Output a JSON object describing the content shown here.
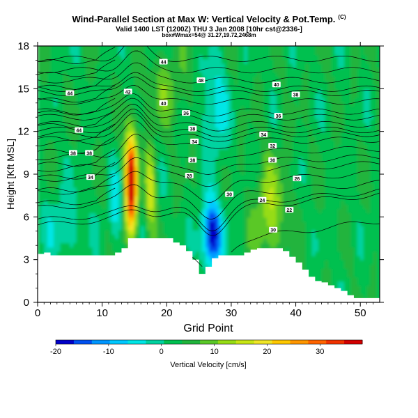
{
  "header": {
    "title": "Wind-Parallel Section at Max W: Vertical Velocity & Pot.Temp.",
    "title_mark": "(C)",
    "subtitle": "Valid 1400 LST (1200Z) THU 3 Jan 2008 [10hr cst@2336-]",
    "subtitle2": "box#Wmax=54@ 31.27,19.72,2468m"
  },
  "chart_data": {
    "type": "heatmap",
    "xlabel": "Grid Point",
    "ylabel": "Height [Kft MSL]",
    "xlim": [
      0,
      53
    ],
    "ylim": [
      0,
      18
    ],
    "x_ticks": [
      "0",
      "10",
      "20",
      "30",
      "40",
      "50"
    ],
    "y_ticks": [
      "0",
      "3",
      "6",
      "9",
      "12",
      "15",
      "18"
    ],
    "colorbar": {
      "label": "Vertical Velocity [cm/s]",
      "range": [
        -20,
        38
      ],
      "tick_labels": [
        "-20",
        "-10",
        "0",
        "10",
        "20",
        "30"
      ],
      "tick_values": [
        -20,
        -10,
        0,
        10,
        20,
        30
      ],
      "colors": [
        "#0000c8",
        "#0050f0",
        "#0096ff",
        "#00c8ff",
        "#00e6e6",
        "#00d2a0",
        "#00c050",
        "#20b43c",
        "#5ac828",
        "#96dc14",
        "#c8e614",
        "#f0e628",
        "#ffc800",
        "#ff9600",
        "#ff6400",
        "#f03200",
        "#d20000"
      ]
    },
    "terrain_height_kft": [
      3.4,
      3.5,
      3.3,
      3.3,
      3.3,
      3.3,
      3.3,
      3.3,
      3.3,
      3.3,
      3.3,
      3.3,
      3.5,
      3.8,
      4.5,
      4.5,
      4.5,
      4.5,
      4.5,
      4.5,
      4.5,
      4.2,
      4.0,
      3.6,
      3.0,
      2.0,
      2.5,
      3.1,
      3.3,
      3.3,
      3.3,
      3.3,
      3.5,
      3.7,
      3.8,
      3.8,
      3.8,
      3.8,
      3.6,
      3.2,
      2.8,
      2.3,
      1.8,
      1.5,
      1.4,
      1.2,
      1.0,
      0.8,
      0.5,
      0.3,
      0.3,
      0.3,
      0.3,
      0.3
    ],
    "w_features": [
      {
        "name": "updraft",
        "x": 14.5,
        "z": 8.5,
        "amp": 38,
        "sx": 0.9,
        "sz": 3.5
      },
      {
        "name": "updraft2",
        "x": 17.5,
        "z": 8.0,
        "amp": 14,
        "sx": 0.8,
        "sz": 2.8
      },
      {
        "name": "downdraft",
        "x": 12.0,
        "z": 6.5,
        "amp": -8,
        "sx": 1.0,
        "sz": 2.5
      },
      {
        "name": "downdraft_main",
        "x": 27.0,
        "z": 4.8,
        "amp": -24,
        "sx": 1.6,
        "sz": 2.2
      },
      {
        "name": "downdraft_upper",
        "x": 27.5,
        "z": 13.5,
        "amp": -9,
        "sx": 1.8,
        "sz": 3.5
      },
      {
        "name": "downdraft_left",
        "x": 4.0,
        "z": 5.5,
        "amp": -6,
        "sx": 3.0,
        "sz": 2.5
      },
      {
        "name": "lee_updraft",
        "x": 36.0,
        "z": 6.5,
        "amp": 10,
        "sx": 2.5,
        "sz": 3.5
      },
      {
        "name": "upper_updraft",
        "x": 20.0,
        "z": 15.0,
        "amp": 6,
        "sx": 3.0,
        "sz": 2.5
      }
    ],
    "theta_contours": [
      {
        "label": "30",
        "label_x": 36.5,
        "label_z": 5.1,
        "base": 4.2
      },
      {
        "label": "30",
        "label_x": 29.7,
        "label_z": 7.6,
        "base": 6.5
      },
      {
        "label": "24",
        "label_x": 34.8,
        "label_z": 7.2,
        "base": 6.8
      },
      {
        "label": "22",
        "label_x": 39.0,
        "label_z": 6.5,
        "base": 7.5
      },
      {
        "label": "26",
        "label_x": 40.2,
        "label_z": 8.7,
        "base": 8.4
      },
      {
        "label": "30",
        "label_x": 36.4,
        "label_z": 10.0,
        "base": 9.2
      },
      {
        "label": "28",
        "label_x": 23.5,
        "label_z": 8.9,
        "base": 9.8
      },
      {
        "label": "38",
        "label_x": 24.0,
        "label_z": 10.0,
        "base": 10.5
      },
      {
        "label": "32",
        "label_x": 36.4,
        "label_z": 11.0,
        "base": 11.3
      },
      {
        "label": "34",
        "label_x": 24.3,
        "label_z": 11.3,
        "base": 11.8
      },
      {
        "label": "34",
        "label_x": 35.0,
        "label_z": 11.8,
        "base": 12.1
      },
      {
        "label": "38",
        "label_x": 24.0,
        "label_z": 12.2,
        "base": 12.5
      },
      {
        "label": "36",
        "label_x": 23.0,
        "label_z": 13.3,
        "base": 13.0
      },
      {
        "label": "36",
        "label_x": 37.3,
        "label_z": 13.1,
        "base": 13.4
      },
      {
        "label": "40",
        "label_x": 19.5,
        "label_z": 14.0,
        "base": 14.1
      },
      {
        "label": "38",
        "label_x": 40.0,
        "label_z": 14.6,
        "base": 14.7
      },
      {
        "label": "42",
        "label_x": 14.0,
        "label_z": 14.8,
        "base": 15.0
      },
      {
        "label": "40",
        "label_x": 37.0,
        "label_z": 15.3,
        "base": 15.6
      },
      {
        "label": "48",
        "label_x": 25.3,
        "label_z": 15.6,
        "base": 16.3
      },
      {
        "label": "44",
        "label_x": 19.5,
        "label_z": 16.9,
        "base": 17.1
      }
    ],
    "left_labels": [
      {
        "label": "44",
        "label_x": 5.0,
        "label_z": 14.7
      },
      {
        "label": "44",
        "label_x": 6.4,
        "label_z": 12.1
      },
      {
        "label": "38",
        "label_x": 5.5,
        "label_z": 10.5
      },
      {
        "label": "38",
        "label_x": 8.0,
        "label_z": 10.5
      },
      {
        "label": "34",
        "label_x": 8.2,
        "label_z": 8.8
      }
    ],
    "grid": false
  }
}
